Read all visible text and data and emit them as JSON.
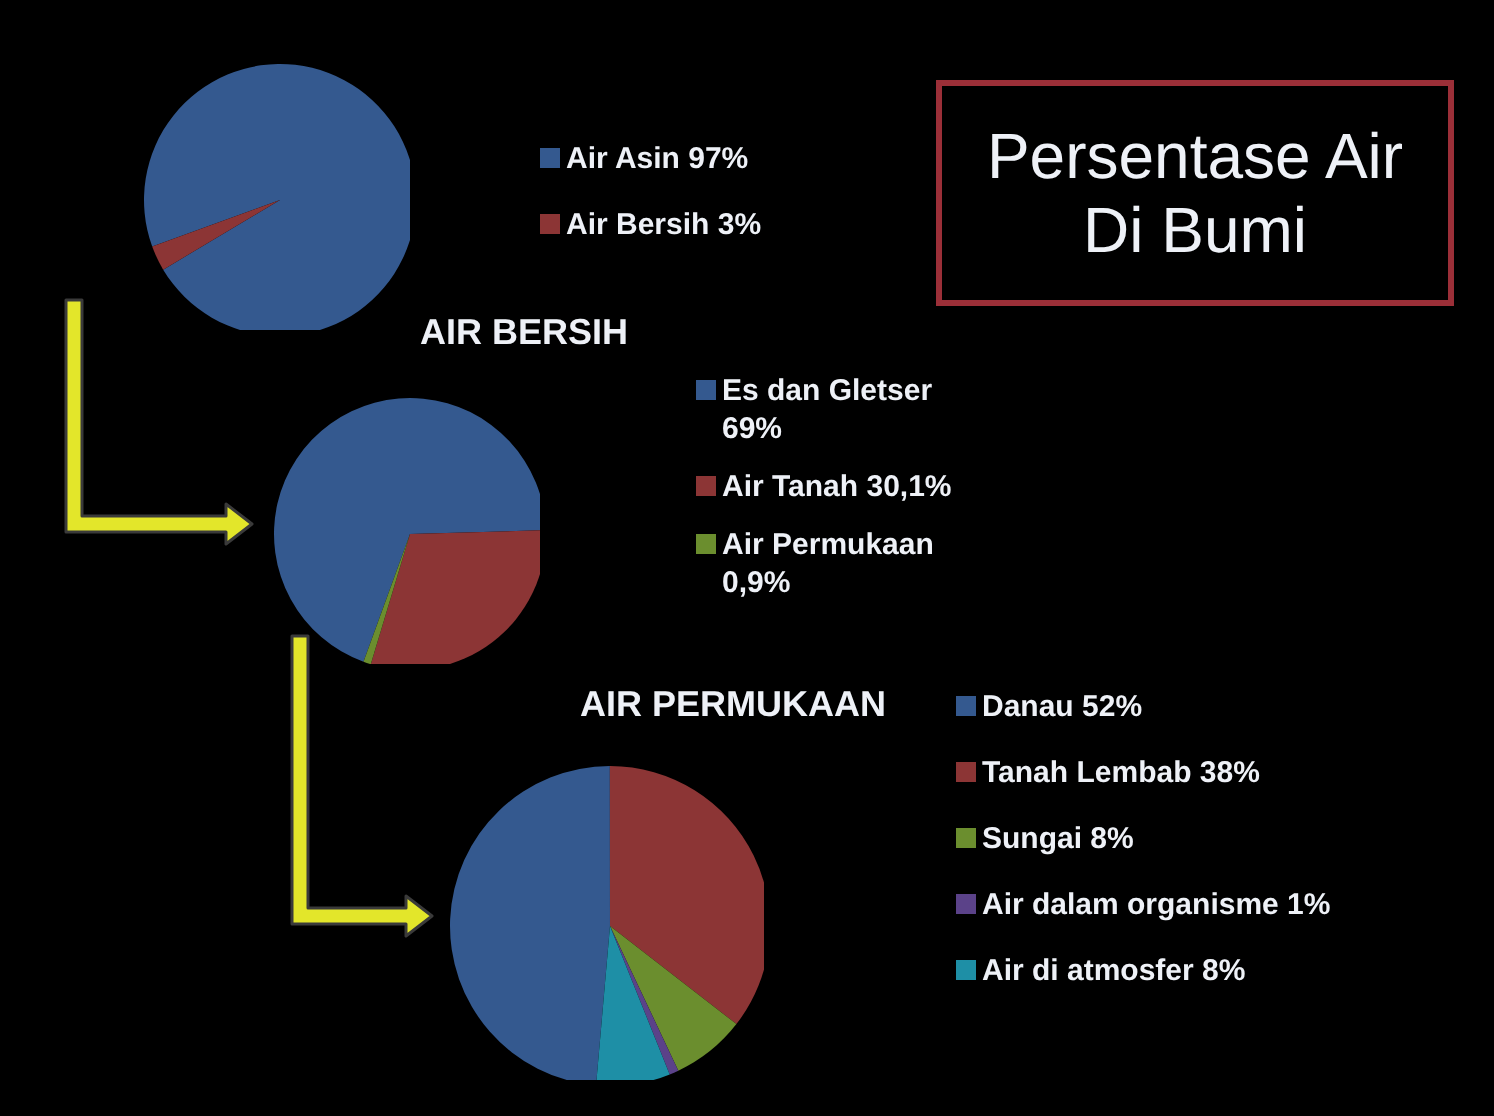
{
  "chart_data": [
    {
      "type": "pie",
      "title": "Persentase Air Di Bumi",
      "categories": [
        "Air Asin",
        "Air Bersih"
      ],
      "values": [
        97,
        3
      ],
      "value_labels": [
        "97%",
        "3%"
      ],
      "colors": [
        "#34598f",
        "#8c3535"
      ],
      "legend": "right"
    },
    {
      "type": "pie",
      "title": "AIR BERSIH",
      "categories": [
        "Es dan Gletser",
        "Air Tanah",
        "Air Permukaan"
      ],
      "values": [
        69,
        30.1,
        0.9
      ],
      "value_labels": [
        "69%",
        "30,1%",
        "0,9%"
      ],
      "colors": [
        "#34598f",
        "#8c3535",
        "#6b8e2e"
      ],
      "legend": "right"
    },
    {
      "type": "pie",
      "title": "AIR PERMUKAAN",
      "categories": [
        "Danau",
        "Tanah Lembab",
        "Sungai",
        "Air dalam organisme",
        "Air di atmosfer"
      ],
      "values": [
        52,
        38,
        8,
        1,
        8
      ],
      "value_labels": [
        "52%",
        "38%",
        "8%",
        "1%",
        "8%"
      ],
      "colors": [
        "#34598f",
        "#8c3535",
        "#6b8e2e",
        "#5b4289",
        "#1e8fa6"
      ],
      "legend": "right"
    }
  ]
}
